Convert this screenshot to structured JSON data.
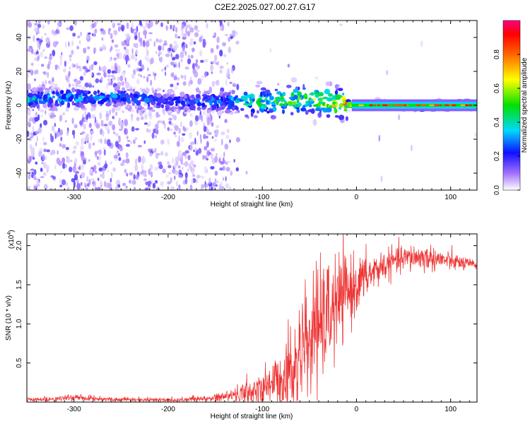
{
  "title": "C2E2.2025.027.00.27.G17",
  "chart_data": [
    {
      "type": "heatmap",
      "xlabel": "Height of straight line (km)",
      "ylabel": "Frequency (Hz)",
      "xlim": [
        -350,
        128
      ],
      "ylim": [
        -50,
        50
      ],
      "xticks": [
        -300,
        -200,
        -100,
        0,
        100
      ],
      "xtick_labels": [
        "-300",
        "-200",
        "-100",
        "0",
        "100"
      ],
      "yticks": [
        -40,
        -20,
        0,
        20,
        40
      ],
      "ytick_labels": [
        "-40",
        "-20",
        "0",
        "20",
        "40"
      ],
      "colorbar": {
        "label": "Normalized spectral amplitude",
        "range": [
          0,
          1
        ],
        "ticks": [
          0.0,
          0.2,
          0.4,
          0.6,
          0.8
        ],
        "tick_labels": [
          "0.0",
          "0.2",
          "0.4",
          "0.6",
          "0.8"
        ],
        "colormap": "rainbow (white-violet-blue-cyan-green-yellow-orange-red-magenta)"
      },
      "signal_band": [
        {
          "x": -310,
          "f": 4,
          "amp": 0.35
        },
        {
          "x": -250,
          "f": 5,
          "amp": 0.3
        },
        {
          "x": -200,
          "f": 2,
          "amp": 0.25
        },
        {
          "x": -150,
          "f": 2,
          "amp": 0.3
        },
        {
          "x": -110,
          "f": 2,
          "amp": 0.45
        },
        {
          "x": -80,
          "f": 2,
          "amp": 0.5
        },
        {
          "x": -50,
          "f": 4,
          "amp": 0.55
        },
        {
          "x": -20,
          "f": 1,
          "amp": 0.7
        },
        {
          "x": 0,
          "f": 0,
          "amp": 0.8
        },
        {
          "x": 50,
          "f": 0,
          "amp": 0.85
        },
        {
          "x": 100,
          "f": 0,
          "amp": 0.85
        },
        {
          "x": 128,
          "f": 0,
          "amp": 0.85
        }
      ]
    },
    {
      "type": "line",
      "xlabel": "Height of straight line (km)",
      "ylabel": "SNR (10 * v/v)",
      "y_multiplier": "(x10⁴)",
      "y_multiplier_base": "(x10",
      "y_multiplier_exp": "4",
      "y_multiplier_close": ")",
      "xlim": [
        -350,
        128
      ],
      "ylim": [
        0,
        21500
      ],
      "xticks": [
        -300,
        -200,
        -100,
        0,
        100
      ],
      "xtick_labels": [
        "-300",
        "-200",
        "-100",
        "0",
        "100"
      ],
      "yticks": [
        5000,
        10000,
        15000,
        20000
      ],
      "ytick_labels": [
        "0.5",
        "1.0",
        "1.5",
        "2.0"
      ],
      "series_color": "#ee3333",
      "series": [
        {
          "x": [
            -350,
            -320,
            -300,
            -270,
            -250,
            -200,
            -160,
            -140,
            -120,
            -100,
            -90,
            -80,
            -70,
            -60,
            -50,
            -40,
            -30,
            -20,
            -10,
            0,
            10,
            20,
            30,
            40,
            50,
            60,
            70,
            80,
            90,
            100,
            110,
            120,
            128
          ],
          "values": [
            300,
            400,
            600,
            400,
            300,
            300,
            400,
            700,
            1200,
            1800,
            2500,
            3000,
            4500,
            6000,
            7500,
            9500,
            11000,
            12500,
            14000,
            15000,
            16000,
            16800,
            17500,
            18000,
            18300,
            18500,
            18500,
            18400,
            18200,
            18000,
            17800,
            17600,
            17500
          ],
          "noise": [
            150,
            150,
            200,
            150,
            150,
            150,
            250,
            400,
            700,
            1200,
            1600,
            2200,
            2800,
            3200,
            3500,
            3800,
            3600,
            3200,
            2600,
            1800,
            1500,
            1200,
            1000,
            900,
            900,
            900,
            900,
            800,
            700,
            600,
            500,
            400,
            300
          ]
        }
      ]
    }
  ]
}
